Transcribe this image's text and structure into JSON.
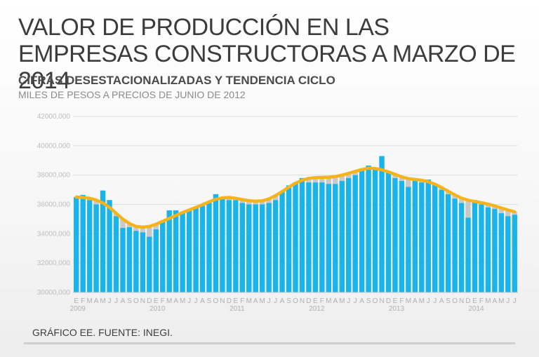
{
  "chart_data": {
    "type": "bar",
    "title": "VALOR DE PRODUCCIÓN EN LAS EMPRESAS CONSTRUCTORAS A MARZO DE 2014",
    "subtitle": "CIFRAS DESESTACIONALIZADAS Y TENDENCIA CICLO",
    "ylabel": "MILES DE PESOS A PRECIOS DE JUNIO DE 2012",
    "ylim": [
      30000000,
      42000000
    ],
    "yticks": [
      "42000000",
      "40000000",
      "38000000",
      "36000000",
      "34000000",
      "32000000",
      "30000000"
    ],
    "month_labels": [
      "E",
      "F",
      "M",
      "A",
      "M",
      "J",
      "J",
      "A",
      "S",
      "O",
      "N",
      "D"
    ],
    "years": [
      "2009",
      "2010",
      "2011",
      "2012",
      "2013",
      "2014"
    ],
    "series": [
      {
        "name": "Cifras desestacionalizadas",
        "color": "#19b4ea",
        "values": [
          36500000,
          36650000,
          36300000,
          36000000,
          36950000,
          36300000,
          35200000,
          34400000,
          34450000,
          34200000,
          34100000,
          33800000,
          34300000,
          34800000,
          35600000,
          35600000,
          35500000,
          35600000,
          35800000,
          35900000,
          36100000,
          36700000,
          36400000,
          36300000,
          36300000,
          36100000,
          36000000,
          36000000,
          36000000,
          36100000,
          36300000,
          36900000,
          37300000,
          37500000,
          37800000,
          37500000,
          37500000,
          37500000,
          37400000,
          37400000,
          37600000,
          37800000,
          38000000,
          38300000,
          38650000,
          38400000,
          39300000,
          38200000,
          37800000,
          37600000,
          37200000,
          37700000,
          37500000,
          37700000,
          37400000,
          37000000,
          36700000,
          36400000,
          36100000,
          35100000,
          36300000,
          36000000,
          35800000,
          35700000,
          35400000,
          35200000,
          35300000
        ]
      },
      {
        "name": "Tendencia ciclo",
        "color": "#f5b41c",
        "values": [
          36500000,
          36480000,
          36420000,
          36300000,
          36100000,
          35800000,
          35400000,
          35000000,
          34700000,
          34500000,
          34450000,
          34500000,
          34650000,
          34850000,
          35050000,
          35250000,
          35450000,
          35620000,
          35800000,
          35980000,
          36180000,
          36350000,
          36450000,
          36480000,
          36420000,
          36330000,
          36260000,
          36220000,
          36250000,
          36380000,
          36600000,
          36880000,
          37180000,
          37450000,
          37650000,
          37780000,
          37830000,
          37840000,
          37860000,
          37900000,
          38000000,
          38120000,
          38250000,
          38380000,
          38470000,
          38450000,
          38360000,
          38220000,
          38050000,
          37880000,
          37760000,
          37700000,
          37650000,
          37550000,
          37380000,
          37150000,
          36900000,
          36650000,
          36430000,
          36290000,
          36200000,
          36120000,
          36020000,
          35900000,
          35760000,
          35620000,
          35500000
        ]
      }
    ]
  },
  "footer": "GRÁFICO EE. FUENTE: INEGI."
}
